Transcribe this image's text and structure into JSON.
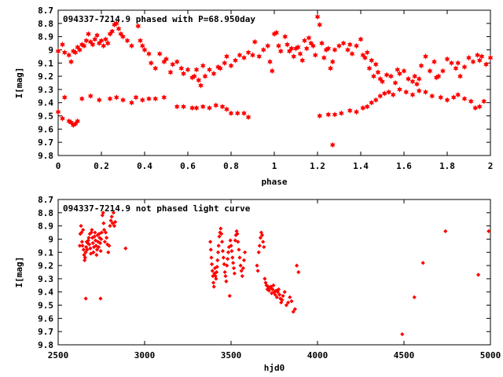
{
  "chart_data": [
    {
      "type": "scatter",
      "title": "094337-7214.9 phased with P=68.950day",
      "xlabel": "phase",
      "ylabel": "I[mag]",
      "xlim": [
        0,
        2
      ],
      "ylim": [
        8.7,
        9.8
      ],
      "y_inverted": true,
      "x_ticks": [
        "0",
        "0.2",
        "0.4",
        "0.6",
        "0.8",
        "1",
        "1.2",
        "1.4",
        "1.6",
        "1.8",
        "2"
      ],
      "y_ticks": [
        "8.7",
        "8.8",
        "8.9",
        "9",
        "9.1",
        "9.2",
        "9.3",
        "9.4",
        "9.5",
        "9.6",
        "9.7",
        "9.8"
      ],
      "grid": false,
      "marker": "star",
      "color": "#ff0000",
      "series": [
        {
          "x": [
            0.0,
            0.02,
            0.03,
            0.05,
            0.06,
            0.07,
            0.08,
            0.09,
            0.1,
            0.11,
            0.12,
            0.13,
            0.14,
            0.15,
            0.16,
            0.17,
            0.18,
            0.19,
            0.2,
            0.21,
            0.22,
            0.23,
            0.24,
            0.25,
            0.26,
            0.27,
            0.28,
            0.29,
            0.3,
            0.32,
            0.34,
            0.37,
            0.38,
            0.39,
            0.4,
            0.42,
            0.43,
            0.45,
            0.47,
            0.49,
            0.5,
            0.52,
            0.53,
            0.55,
            0.57,
            0.58,
            0.6,
            0.62,
            0.63,
            0.64,
            0.65,
            0.66,
            0.67,
            0.68,
            0.7,
            0.72,
            0.74,
            0.75,
            0.77,
            0.78,
            0.8,
            0.82,
            0.84,
            0.86,
            0.88,
            0.9,
            0.91,
            0.93,
            0.95,
            0.97,
            0.98,
            0.99,
            1.0,
            1.01,
            1.02,
            1.03,
            1.05,
            1.06,
            1.07,
            1.08,
            1.09,
            1.1,
            1.11,
            1.12,
            1.13,
            1.14,
            1.15,
            1.16,
            1.17,
            1.18,
            1.19,
            1.2,
            1.21,
            1.22,
            1.23,
            1.24,
            1.25,
            1.26,
            1.27,
            1.28,
            1.3,
            1.32,
            1.34,
            1.35,
            1.36,
            1.38,
            1.4,
            1.41,
            1.42,
            1.43,
            1.44,
            1.45,
            1.46,
            1.47,
            1.48,
            1.49,
            1.5,
            1.52,
            1.54,
            1.56,
            1.57,
            1.58,
            1.6,
            1.62,
            1.64,
            1.65,
            1.66,
            1.67,
            1.68,
            1.7,
            1.72,
            1.74,
            1.75,
            1.76,
            1.78,
            1.8,
            1.82,
            1.84,
            1.85,
            1.86,
            1.88,
            1.9,
            1.92,
            1.94,
            1.95,
            1.96,
            1.98,
            2.0
          ],
          "y": [
            9.01,
            8.96,
            9.02,
            9.04,
            9.09,
            9.01,
            9.02,
            8.98,
            9.0,
            8.96,
            8.97,
            8.93,
            8.88,
            8.94,
            8.96,
            8.92,
            8.89,
            8.95,
            8.93,
            8.97,
            8.92,
            8.95,
            8.88,
            8.86,
            8.81,
            8.8,
            8.84,
            8.88,
            8.9,
            8.93,
            8.97,
            8.82,
            8.93,
            8.97,
            9.0,
            9.03,
            9.1,
            9.14,
            9.03,
            9.09,
            9.07,
            9.17,
            9.11,
            9.09,
            9.14,
            9.18,
            9.15,
            9.21,
            9.2,
            9.15,
            9.23,
            9.27,
            9.12,
            9.2,
            9.15,
            9.18,
            9.13,
            9.14,
            9.1,
            9.05,
            9.12,
            9.08,
            9.04,
            9.06,
            9.02,
            9.04,
            8.94,
            9.05,
            9.0,
            8.97,
            9.09,
            9.16,
            8.88,
            8.87,
            8.97,
            9.01,
            8.9,
            8.96,
            9.01,
            8.99,
            9.05,
            8.99,
            8.98,
            9.03,
            9.08,
            8.93,
            8.99,
            8.91,
            8.95,
            8.97,
            9.04,
            8.75,
            8.81,
            8.95,
            9.06,
            9.0,
            8.99,
            9.14,
            9.09,
            9.0,
            8.97,
            8.95,
            9.0,
            8.96,
            9.03,
            8.97,
            8.92,
            9.04,
            9.06,
            9.02,
            9.14,
            9.08,
            9.2,
            9.11,
            9.17,
            9.22,
            9.24,
            9.19,
            9.2,
            9.25,
            9.15,
            9.18,
            9.16,
            9.22,
            9.24,
            9.2,
            9.26,
            9.22,
            9.12,
            9.05,
            9.16,
            9.09,
            9.21,
            9.2,
            9.16,
            9.07,
            9.1,
            9.14,
            9.1,
            9.2,
            9.13,
            9.06,
            9.09,
            9.04,
            9.08,
            9.05,
            9.11,
            9.06
          ]
        },
        {
          "x": [
            0.0,
            0.02,
            0.03,
            0.05,
            0.06,
            0.07,
            0.08,
            0.09,
            0.11,
            0.15,
            0.19,
            0.24,
            0.27,
            0.3,
            0.34,
            0.36,
            0.39,
            0.42,
            0.45,
            0.49,
            0.55,
            0.58,
            0.62,
            0.64,
            0.67,
            0.7,
            0.73,
            0.76,
            0.78,
            0.8,
            0.83,
            0.86,
            0.88,
            1.21,
            1.25,
            1.28,
            1.31,
            1.35,
            1.38,
            1.41,
            1.43,
            1.45,
            1.47,
            1.49,
            1.51,
            1.53,
            1.55,
            1.58,
            1.61,
            1.64,
            1.67,
            1.7,
            1.73,
            1.77,
            1.8,
            1.83,
            1.85,
            1.88,
            1.91,
            1.93,
            1.95,
            1.97
          ],
          "y": [
            9.47,
            9.52,
            9.36,
            9.54,
            9.55,
            9.57,
            9.56,
            9.54,
            9.37,
            9.35,
            9.38,
            9.37,
            9.36,
            9.38,
            9.4,
            9.36,
            9.38,
            9.37,
            9.37,
            9.36,
            9.43,
            9.43,
            9.44,
            9.44,
            9.43,
            9.44,
            9.42,
            9.43,
            9.45,
            9.48,
            9.48,
            9.48,
            9.51,
            9.5,
            9.49,
            9.49,
            9.48,
            9.46,
            9.47,
            9.44,
            9.43,
            9.4,
            9.38,
            9.35,
            9.33,
            9.32,
            9.34,
            9.3,
            9.32,
            9.34,
            9.31,
            9.32,
            9.35,
            9.36,
            9.38,
            9.36,
            9.34,
            9.37,
            9.39,
            9.44,
            9.43,
            9.39
          ]
        },
        {
          "x": [
            1.27
          ],
          "y": [
            9.72
          ]
        }
      ]
    },
    {
      "type": "scatter",
      "title": "094337-7214.9 not phased light curve",
      "xlabel": "hjd0",
      "ylabel": "I[mag]",
      "xlim": [
        2500,
        5000
      ],
      "ylim": [
        8.7,
        9.8
      ],
      "y_inverted": true,
      "x_ticks": [
        "2500",
        "3000",
        "3500",
        "4000",
        "4500",
        "5000"
      ],
      "y_ticks": [
        "8.7",
        "8.8",
        "8.9",
        "9",
        "9.1",
        "9.2",
        "9.3",
        "9.4",
        "9.5",
        "9.6",
        "9.7",
        "9.8"
      ],
      "grid": false,
      "marker": "diamond",
      "color": "#ff0000",
      "series": [
        {
          "x": [
            2625,
            2628,
            2632,
            2635,
            2638,
            2641,
            2644,
            2647,
            2650,
            2653,
            2656,
            2659,
            2662,
            2665,
            2668,
            2671,
            2674,
            2677,
            2680,
            2683,
            2686,
            2689,
            2692,
            2695,
            2698,
            2701,
            2704,
            2707,
            2710,
            2713,
            2716,
            2719,
            2722,
            2725,
            2728,
            2731,
            2734,
            2737,
            2740,
            2743,
            2746,
            2749,
            2752,
            2756,
            2760,
            2763,
            2766,
            2770,
            2775,
            2780,
            2785,
            2790,
            2795,
            2800,
            2805,
            2810,
            2815,
            2820,
            2825,
            2830,
            2890,
            2660,
            2745
          ],
          "y": [
            9.05,
            8.96,
            8.9,
            8.95,
            9.02,
            9.05,
            8.93,
            9.08,
            9.12,
            9.16,
            9.14,
            9.1,
            9.06,
            9.02,
            9.08,
            9.03,
            9.01,
            8.99,
            9.04,
            8.96,
            9.07,
            9.11,
            8.95,
            8.93,
            8.99,
            9.03,
            9.1,
            9.06,
            8.98,
            8.95,
            9.01,
            9.05,
            9.12,
            9.08,
            8.97,
            9.02,
            9.06,
            8.96,
            8.99,
            9.03,
            9.09,
            9.0,
            8.95,
            8.82,
            8.8,
            8.88,
            8.93,
            9.02,
            8.95,
            8.99,
            9.04,
            9.1,
            9.05,
            8.9,
            8.86,
            8.83,
            8.88,
            8.8,
            8.9,
            8.87,
            9.07,
            9.45,
            9.45
          ]
        },
        {
          "x": [
            3380,
            3383,
            3386,
            3389,
            3392,
            3395,
            3398,
            3401,
            3404,
            3407,
            3410,
            3413,
            3416,
            3419,
            3422,
            3425,
            3428,
            3432,
            3436,
            3440,
            3444,
            3448,
            3452,
            3456,
            3460,
            3464,
            3468,
            3472,
            3476,
            3480,
            3484,
            3488,
            3492,
            3496,
            3500,
            3504,
            3508,
            3512,
            3516,
            3520,
            3524,
            3528,
            3532,
            3536,
            3540,
            3545,
            3550,
            3555,
            3560,
            3565,
            3570,
            3575,
            3580
          ],
          "y": [
            9.02,
            9.08,
            9.14,
            9.19,
            9.24,
            9.28,
            9.33,
            9.36,
            9.26,
            9.22,
            9.28,
            9.3,
            9.25,
            9.21,
            9.16,
            9.1,
            9.05,
            8.98,
            8.95,
            8.92,
            8.96,
            9.02,
            9.09,
            9.14,
            9.19,
            9.25,
            9.28,
            9.32,
            9.2,
            9.15,
            9.1,
            9.06,
            9.43,
            9.01,
            9.05,
            9.09,
            9.14,
            9.18,
            9.22,
            9.26,
            9.01,
            8.97,
            8.94,
            8.96,
            9.02,
            9.08,
            9.14,
            9.2,
            9.24,
            9.28,
            9.22,
            9.16,
            9.1
          ]
        },
        {
          "x": [
            3650,
            3655,
            3660,
            3665,
            3670,
            3675,
            3680,
            3685,
            3690,
            3695,
            3700,
            3705,
            3710,
            3715,
            3720,
            3725,
            3730,
            3735,
            3740,
            3745,
            3750,
            3755,
            3760,
            3765,
            3770,
            3775,
            3780,
            3785,
            3790,
            3795,
            3800,
            3810,
            3820,
            3830,
            3840,
            3850,
            3860,
            3870,
            3880,
            3890
          ],
          "y": [
            9.2,
            9.24,
            9.1,
            9.05,
            8.99,
            8.95,
            8.97,
            9.02,
            9.06,
            9.3,
            9.33,
            9.35,
            9.38,
            9.36,
            9.39,
            9.37,
            9.36,
            9.41,
            9.38,
            9.35,
            9.4,
            9.42,
            9.39,
            9.44,
            9.4,
            9.38,
            9.42,
            9.45,
            9.48,
            9.46,
            9.43,
            9.4,
            9.5,
            9.48,
            9.44,
            9.47,
            9.55,
            9.53,
            9.2,
            9.25
          ]
        },
        {
          "x": [
            4490,
            4560,
            4610,
            4740,
            4930,
            4990
          ],
          "y": [
            9.72,
            9.44,
            9.18,
            8.94,
            9.27,
            8.94
          ]
        }
      ]
    }
  ]
}
